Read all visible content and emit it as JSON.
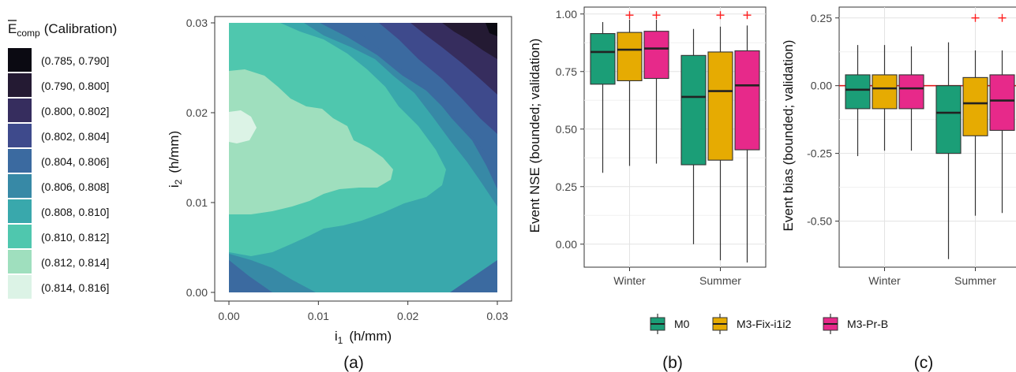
{
  "chart_data": [
    {
      "panel": "(a)",
      "type": "heatmap",
      "xlabel_base": "i",
      "xlabel_sub": "1",
      "xlabel_unit": "(h/mm)",
      "ylabel_base": "i",
      "ylabel_sub": "2",
      "ylabel_unit": "(h/mm)",
      "xlim": [
        0,
        0.03
      ],
      "ylim": [
        0,
        0.03
      ],
      "xticks": [
        "0.00",
        "0.01",
        "0.02",
        "0.03"
      ],
      "yticks": [
        "0.00",
        "0.01",
        "0.02",
        "0.03"
      ],
      "legend": {
        "title_base": "E",
        "title_sub": "comp",
        "title_rest": "(Calibration)",
        "items": [
          {
            "label": "(0.785, 0.790]",
            "color": "#0b0a12"
          },
          {
            "label": "(0.790, 0.800]",
            "color": "#241a33"
          },
          {
            "label": "(0.800, 0.802]",
            "color": "#362d5e"
          },
          {
            "label": "(0.802, 0.804]",
            "color": "#3e4a8c"
          },
          {
            "label": "(0.804, 0.806]",
            "color": "#3b6aa0"
          },
          {
            "label": "(0.806, 0.808]",
            "color": "#3789a6"
          },
          {
            "label": "(0.808, 0.810]",
            "color": "#39a8ac"
          },
          {
            "label": "(0.810, 0.812]",
            "color": "#4fc7ae"
          },
          {
            "label": "(0.812, 0.814]",
            "color": "#9fdfbe"
          },
          {
            "label": "(0.814, 0.816]",
            "color": "#dcf3e6"
          }
        ]
      }
    },
    {
      "panel": "(b)",
      "type": "box",
      "ylabel": "Event NSE (bounded; validation)",
      "ylim": [
        -0.1,
        1.03
      ],
      "yticks": [
        "0.00",
        "0.25",
        "0.50",
        "0.75",
        "1.00"
      ],
      "categories": [
        "Winter",
        "Summer"
      ],
      "series": [
        {
          "name": "M0",
          "color": "#1b9e77",
          "boxes": [
            {
              "min": 0.31,
              "q1": 0.695,
              "median": 0.835,
              "q3": 0.915,
              "max": 0.965,
              "outliers": []
            },
            {
              "min": 0.0,
              "q1": 0.345,
              "median": 0.64,
              "q3": 0.82,
              "max": 0.935,
              "outliers": []
            }
          ]
        },
        {
          "name": "M3-Fix-i1i2",
          "color": "#e6ab02",
          "boxes": [
            {
              "min": 0.34,
              "q1": 0.71,
              "median": 0.845,
              "q3": 0.92,
              "max": 0.975,
              "outliers": [
                0.995
              ]
            },
            {
              "min": -0.07,
              "q1": 0.365,
              "median": 0.665,
              "q3": 0.835,
              "max": 0.945,
              "outliers": [
                0.995
              ]
            }
          ]
        },
        {
          "name": "M3-Pr-B",
          "color": "#e7298a",
          "boxes": [
            {
              "min": 0.35,
              "q1": 0.72,
              "median": 0.85,
              "q3": 0.925,
              "max": 0.975,
              "outliers": [
                0.995
              ]
            },
            {
              "min": -0.08,
              "q1": 0.41,
              "median": 0.69,
              "q3": 0.84,
              "max": 0.95,
              "outliers": [
                0.995
              ]
            }
          ]
        }
      ]
    },
    {
      "panel": "(c)",
      "type": "box",
      "ylabel": "Event bias (bounded; validation)",
      "ylim": [
        -0.67,
        0.29
      ],
      "yticks": [
        "0.25",
        "0.00",
        "-0.25",
        "-0.50"
      ],
      "reference_line": 0,
      "categories": [
        "Winter",
        "Summer"
      ],
      "series": [
        {
          "name": "M0",
          "color": "#1b9e77",
          "boxes": [
            {
              "min": -0.26,
              "q1": -0.085,
              "median": -0.015,
              "q3": 0.04,
              "max": 0.15,
              "outliers": []
            },
            {
              "min": -0.64,
              "q1": -0.25,
              "median": -0.1,
              "q3": 0.0,
              "max": 0.16,
              "outliers": []
            }
          ]
        },
        {
          "name": "M3-Fix-i1i2",
          "color": "#e6ab02",
          "boxes": [
            {
              "min": -0.24,
              "q1": -0.085,
              "median": -0.01,
              "q3": 0.04,
              "max": 0.15,
              "outliers": []
            },
            {
              "min": -0.48,
              "q1": -0.185,
              "median": -0.065,
              "q3": 0.03,
              "max": 0.13,
              "outliers": [
                0.25
              ]
            }
          ]
        },
        {
          "name": "M3-Pr-B",
          "color": "#e7298a",
          "boxes": [
            {
              "min": -0.24,
              "q1": -0.085,
              "median": -0.01,
              "q3": 0.04,
              "max": 0.145,
              "outliers": []
            },
            {
              "min": -0.47,
              "q1": -0.165,
              "median": -0.055,
              "q3": 0.04,
              "max": 0.13,
              "outliers": [
                0.25
              ]
            }
          ]
        }
      ]
    }
  ],
  "shared_legend": [
    "M0",
    "M3-Fix-i1i2",
    "M3-Pr-B"
  ],
  "panel_labels": [
    "(a)",
    "(b)",
    "(c)"
  ]
}
